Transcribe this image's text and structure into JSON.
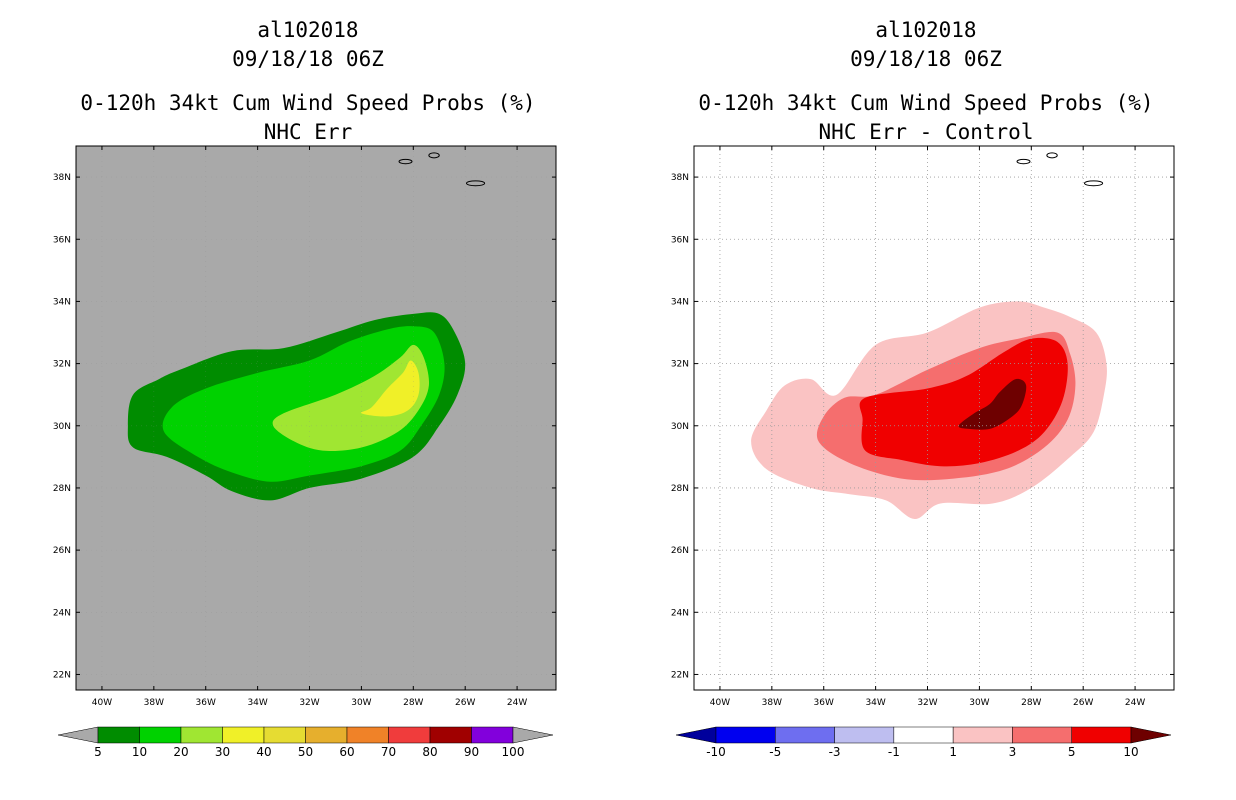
{
  "chart_data": [
    {
      "id": "left",
      "type": "heatmap",
      "storm_id": "al102018",
      "datetime": "09/18/18 06Z",
      "title": "0-120h 34kt Cum Wind Speed Probs (%)",
      "subtitle": "NHC Err",
      "xlim": [
        -41,
        -22.5
      ],
      "ylim": [
        21.5,
        39
      ],
      "x_ticks": [
        -40,
        -38,
        -36,
        -34,
        -32,
        -30,
        -28,
        -26,
        -24
      ],
      "x_tick_labels": [
        "40W",
        "38W",
        "36W",
        "34W",
        "32W",
        "30W",
        "28W",
        "26W",
        "24W"
      ],
      "y_ticks": [
        22,
        24,
        26,
        28,
        30,
        32,
        34,
        36,
        38
      ],
      "y_tick_labels": [
        "22N",
        "24N",
        "26N",
        "28N",
        "30N",
        "32N",
        "34N",
        "36N",
        "38N"
      ],
      "grid": false,
      "background": "#a9a9a9",
      "colorbar": {
        "labels": [
          "5",
          "10",
          "20",
          "30",
          "40",
          "50",
          "60",
          "70",
          "80",
          "90",
          "100"
        ],
        "colors": [
          "#008c00",
          "#00d200",
          "#a0e632",
          "#f0f028",
          "#e6dc32",
          "#e6af2d",
          "#f08228",
          "#f03c3c",
          "#a00000",
          "#8200dc"
        ],
        "end_colors": [
          "#a9a9a9",
          "#a9a9a9"
        ]
      },
      "contours": [
        {
          "level": "5-10",
          "color": "#008c00",
          "points": [
            [
              -37,
              31.8
            ],
            [
              -35,
              32.4
            ],
            [
              -33,
              32.5
            ],
            [
              -31,
              33.0
            ],
            [
              -29.5,
              33.4
            ],
            [
              -28,
              33.6
            ],
            [
              -27,
              33.6
            ],
            [
              -26.4,
              33.0
            ],
            [
              -26,
              32.0
            ],
            [
              -26.3,
              31.0
            ],
            [
              -27,
              30.0
            ],
            [
              -28,
              29.0
            ],
            [
              -30,
              28.3
            ],
            [
              -32,
              28.0
            ],
            [
              -33.5,
              27.6
            ],
            [
              -35,
              27.9
            ],
            [
              -36,
              28.4
            ],
            [
              -37.5,
              29.0
            ],
            [
              -38.8,
              29.3
            ],
            [
              -39,
              30.0
            ],
            [
              -38.8,
              31.0
            ],
            [
              -37.8,
              31.5
            ]
          ]
        },
        {
          "level": "10-20",
          "color": "#00d200",
          "points": [
            [
              -36,
              31.2
            ],
            [
              -34,
              31.7
            ],
            [
              -32,
              32.1
            ],
            [
              -30.5,
              32.7
            ],
            [
              -29,
              33.1
            ],
            [
              -28,
              33.2
            ],
            [
              -27.2,
              33.0
            ],
            [
              -26.8,
              32.0
            ],
            [
              -27.0,
              31.0
            ],
            [
              -27.7,
              30.0
            ],
            [
              -28.5,
              29.2
            ],
            [
              -30,
              28.7
            ],
            [
              -32,
              28.4
            ],
            [
              -33.5,
              28.2
            ],
            [
              -35,
              28.5
            ],
            [
              -36.3,
              29.0
            ],
            [
              -37.6,
              29.8
            ],
            [
              -37.3,
              30.6
            ]
          ]
        },
        {
          "level": "20-30",
          "color": "#a0e632",
          "points": [
            [
              -33,
              30.4
            ],
            [
              -31,
              31.0
            ],
            [
              -29.5,
              31.6
            ],
            [
              -28.5,
              32.2
            ],
            [
              -28,
              32.6
            ],
            [
              -27.6,
              32.2
            ],
            [
              -27.4,
              31.3
            ],
            [
              -27.8,
              30.5
            ],
            [
              -28.6,
              29.8
            ],
            [
              -30,
              29.3
            ],
            [
              -31.5,
              29.2
            ],
            [
              -32.6,
              29.5
            ],
            [
              -33.4,
              30.0
            ]
          ]
        },
        {
          "level": "30-40",
          "color": "#f0f028",
          "points": [
            [
              -29.6,
              30.6
            ],
            [
              -29.0,
              31.2
            ],
            [
              -28.4,
              31.7
            ],
            [
              -28.1,
              32.1
            ],
            [
              -27.8,
              31.7
            ],
            [
              -27.8,
              31.0
            ],
            [
              -28.2,
              30.5
            ],
            [
              -29.0,
              30.3
            ],
            [
              -30.0,
              30.4
            ]
          ]
        }
      ],
      "coastlines": [
        {
          "label": "island-a",
          "center": [
            -28.3,
            38.5
          ],
          "rx": 0.25,
          "ry": 0.07
        },
        {
          "label": "island-b",
          "center": [
            -27.2,
            38.7
          ],
          "rx": 0.2,
          "ry": 0.08
        },
        {
          "label": "island-c",
          "center": [
            -25.6,
            37.8
          ],
          "rx": 0.35,
          "ry": 0.08
        }
      ]
    },
    {
      "id": "right",
      "type": "heatmap",
      "storm_id": "al102018",
      "datetime": "09/18/18 06Z",
      "title": "0-120h 34kt Cum Wind Speed Probs (%)",
      "subtitle": "NHC Err - Control",
      "xlim": [
        -41,
        -22.5
      ],
      "ylim": [
        21.5,
        39
      ],
      "x_ticks": [
        -40,
        -38,
        -36,
        -34,
        -32,
        -30,
        -28,
        -26,
        -24
      ],
      "x_tick_labels": [
        "40W",
        "38W",
        "36W",
        "34W",
        "32W",
        "30W",
        "28W",
        "26W",
        "24W"
      ],
      "y_ticks": [
        22,
        24,
        26,
        28,
        30,
        32,
        34,
        36,
        38
      ],
      "y_tick_labels": [
        "22N",
        "24N",
        "26N",
        "28N",
        "30N",
        "32N",
        "34N",
        "36N",
        "38N"
      ],
      "grid": true,
      "background": "#ffffff",
      "colorbar": {
        "labels": [
          "-10",
          "-5",
          "-3",
          "-1",
          "1",
          "3",
          "5",
          "10"
        ],
        "colors": [
          "#0000f0",
          "#6e6ef0",
          "#bebef0",
          "#ffffff",
          "#fac3c3",
          "#f56e6e",
          "#f00000"
        ],
        "end_colors": [
          "#00009c",
          "#6e0000"
        ]
      },
      "contours": [
        {
          "level": "1-3",
          "color": "#fac3c3",
          "points": [
            [
              -35.5,
              31.0
            ],
            [
              -34,
              32.6
            ],
            [
              -32,
              33.0
            ],
            [
              -30,
              33.8
            ],
            [
              -28.5,
              34.0
            ],
            [
              -27.5,
              33.8
            ],
            [
              -26.5,
              33.5
            ],
            [
              -25.5,
              33.0
            ],
            [
              -25.1,
              32.0
            ],
            [
              -25.2,
              31.0
            ],
            [
              -25.6,
              29.8
            ],
            [
              -26.5,
              29.0
            ],
            [
              -28,
              28.0
            ],
            [
              -29.5,
              27.5
            ],
            [
              -31.5,
              27.5
            ],
            [
              -32.5,
              27.0
            ],
            [
              -33.6,
              27.6
            ],
            [
              -35,
              27.8
            ],
            [
              -36.5,
              28.0
            ],
            [
              -38.2,
              28.6
            ],
            [
              -38.8,
              29.5
            ],
            [
              -38.2,
              30.5
            ],
            [
              -37.5,
              31.3
            ],
            [
              -36.5,
              31.5
            ]
          ]
        },
        {
          "level": "3-5",
          "color": "#f56e6e",
          "points": [
            [
              -34,
              31.0
            ],
            [
              -32,
              31.8
            ],
            [
              -30,
              32.5
            ],
            [
              -28.5,
              32.8
            ],
            [
              -27,
              33.0
            ],
            [
              -26.5,
              32.3
            ],
            [
              -26.3,
              31.3
            ],
            [
              -26.6,
              30.2
            ],
            [
              -27.5,
              29.3
            ],
            [
              -29,
              28.6
            ],
            [
              -31,
              28.3
            ],
            [
              -33,
              28.3
            ],
            [
              -35,
              28.8
            ],
            [
              -36.2,
              29.5
            ],
            [
              -36.0,
              30.3
            ],
            [
              -35.2,
              30.9
            ]
          ]
        },
        {
          "level": "5-10",
          "color": "#f00000",
          "points": [
            [
              -34.4,
              30.9
            ],
            [
              -32,
              31.2
            ],
            [
              -30.5,
              31.6
            ],
            [
              -29,
              32.4
            ],
            [
              -28,
              32.8
            ],
            [
              -27,
              32.7
            ],
            [
              -26.6,
              32.0
            ],
            [
              -26.8,
              30.8
            ],
            [
              -27.5,
              29.8
            ],
            [
              -28.5,
              29.2
            ],
            [
              -30,
              28.8
            ],
            [
              -31.5,
              28.7
            ],
            [
              -33,
              28.9
            ],
            [
              -34.4,
              29.2
            ],
            [
              -34.5,
              30.2
            ]
          ]
        },
        {
          "level": ">10",
          "color": "#6e0000",
          "points": [
            [
              -30.8,
              30.0
            ],
            [
              -30.2,
              30.4
            ],
            [
              -29.6,
              30.7
            ],
            [
              -29.2,
              31.1
            ],
            [
              -28.6,
              31.5
            ],
            [
              -28.2,
              31.3
            ],
            [
              -28.4,
              30.6
            ],
            [
              -28.9,
              30.2
            ],
            [
              -29.6,
              29.9
            ],
            [
              -30.4,
              29.9
            ]
          ]
        }
      ],
      "coastlines": [
        {
          "label": "island-a",
          "center": [
            -28.3,
            38.5
          ],
          "rx": 0.25,
          "ry": 0.07
        },
        {
          "label": "island-b",
          "center": [
            -27.2,
            38.7
          ],
          "rx": 0.2,
          "ry": 0.08
        },
        {
          "label": "island-c",
          "center": [
            -25.6,
            37.8
          ],
          "rx": 0.35,
          "ry": 0.08
        }
      ]
    }
  ]
}
